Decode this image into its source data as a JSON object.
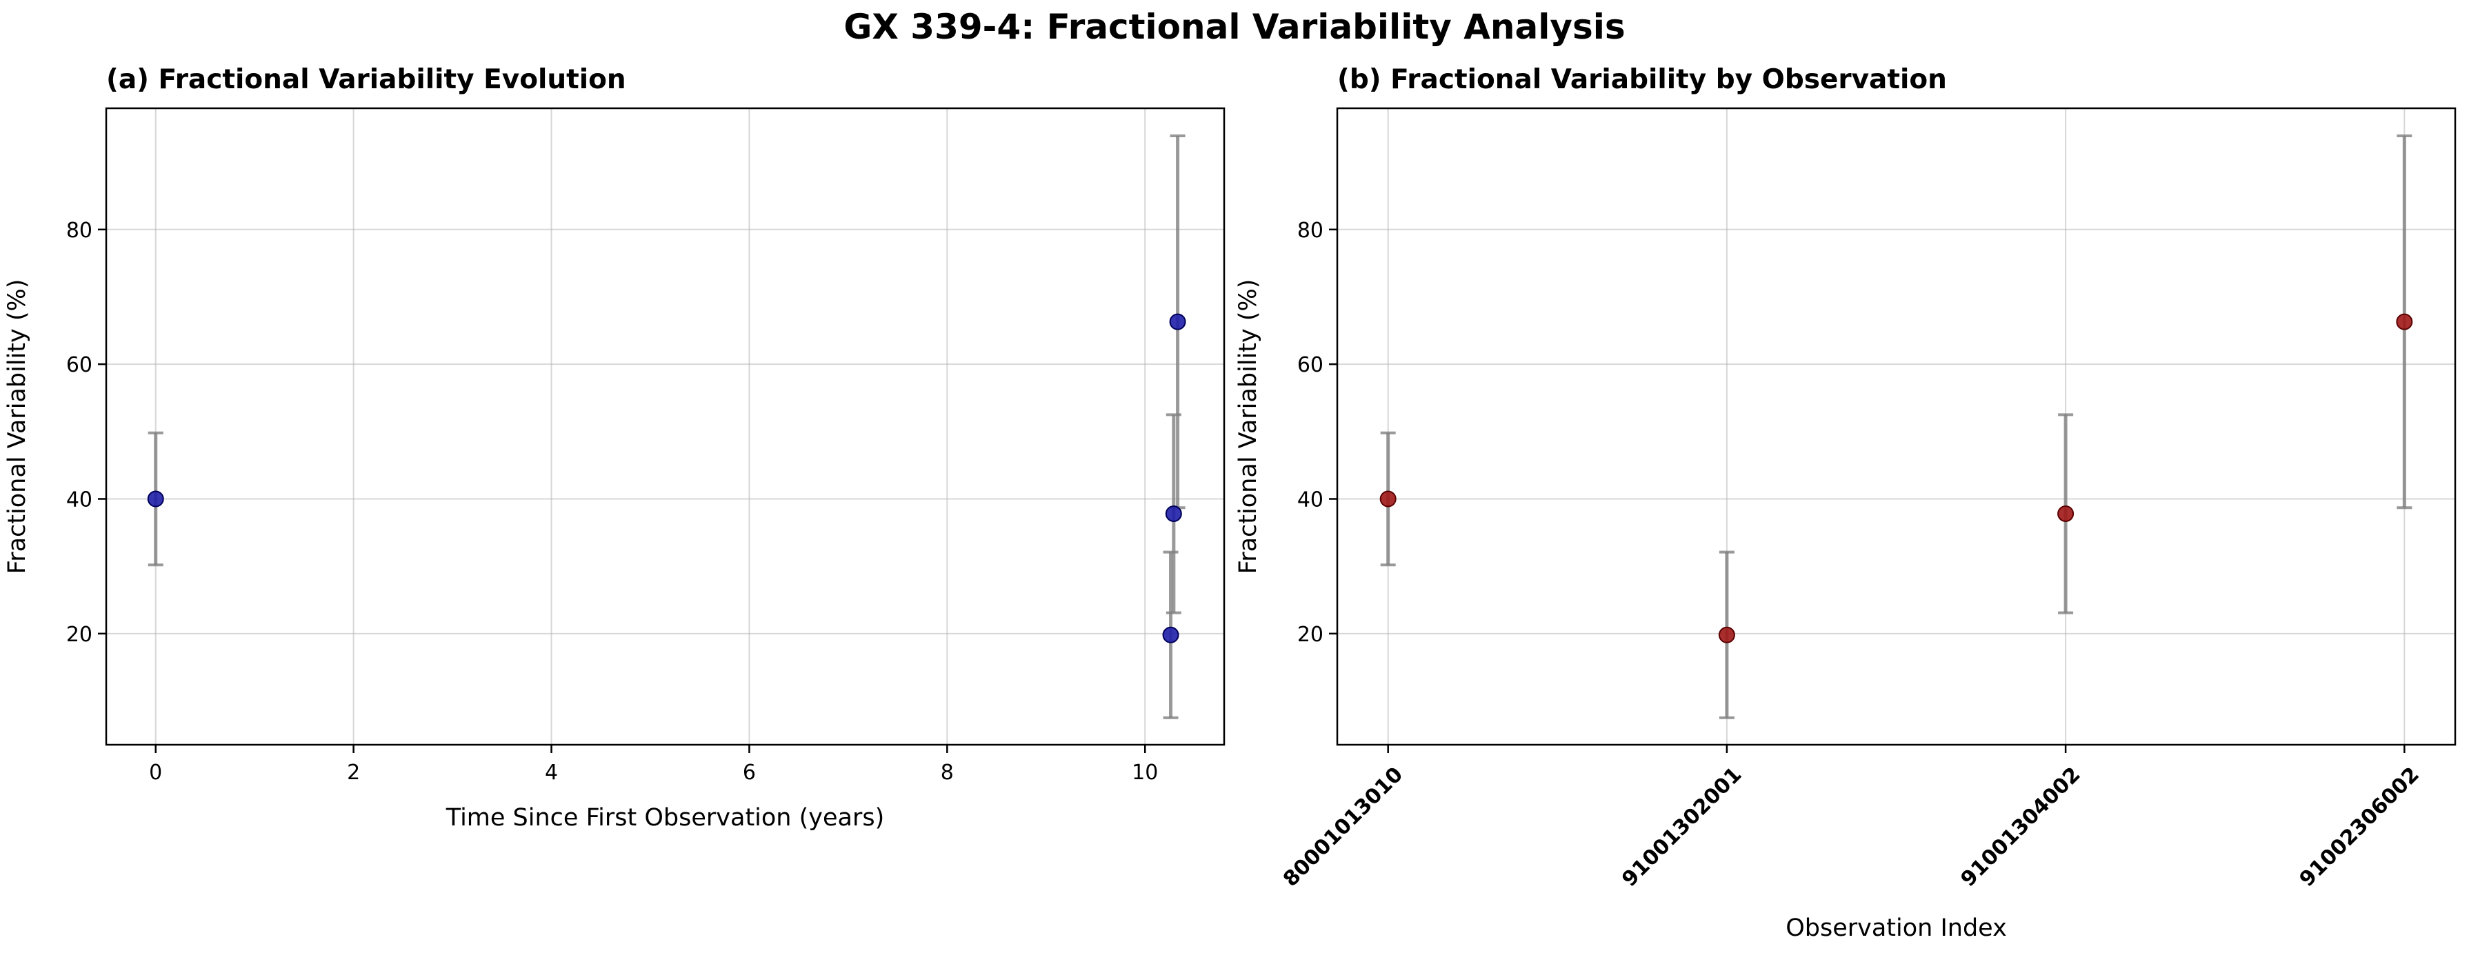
{
  "figure": {
    "title": "GX 339-4: Fractional Variability Analysis"
  },
  "chart_data": [
    {
      "type": "scatter",
      "title": "(a) Fractional Variability Evolution",
      "xlabel": "Time Since First Observation (years)",
      "ylabel": "Fractional Variability (%)",
      "xlim": [
        -0.5,
        10.8
      ],
      "ylim": [
        3.5,
        98
      ],
      "xticks": [
        0,
        2,
        4,
        6,
        8,
        10
      ],
      "yticks": [
        20,
        40,
        60,
        80
      ],
      "grid": true,
      "marker_color": "#1f1fa8",
      "marker_edge": "#00005a",
      "errorbar_color": "#808080",
      "points": [
        {
          "x": 0.0,
          "y": 40.0,
          "yerr": 9.8
        },
        {
          "x": 10.26,
          "y": 19.8,
          "yerr": 12.3
        },
        {
          "x": 10.29,
          "y": 37.8,
          "yerr": 14.7
        },
        {
          "x": 10.33,
          "y": 66.3,
          "yerr": 27.6
        }
      ]
    },
    {
      "type": "scatter",
      "title": "(b) Fractional Variability by Observation",
      "xlabel": "Observation Index",
      "ylabel": "Fractional Variability (%)",
      "xlim": [
        -0.15,
        3.15
      ],
      "ylim": [
        3.5,
        98
      ],
      "categories": [
        "80001013010",
        "91001302001",
        "91001304002",
        "91002306002"
      ],
      "yticks": [
        20,
        40,
        60,
        80
      ],
      "grid": true,
      "marker_color": "#a01818",
      "marker_edge": "#5a0000",
      "errorbar_color": "#808080",
      "points": [
        {
          "x": 0,
          "y": 40.0,
          "yerr": 9.8
        },
        {
          "x": 1,
          "y": 19.8,
          "yerr": 12.3
        },
        {
          "x": 2,
          "y": 37.8,
          "yerr": 14.7
        },
        {
          "x": 3,
          "y": 66.3,
          "yerr": 27.6
        }
      ]
    }
  ]
}
